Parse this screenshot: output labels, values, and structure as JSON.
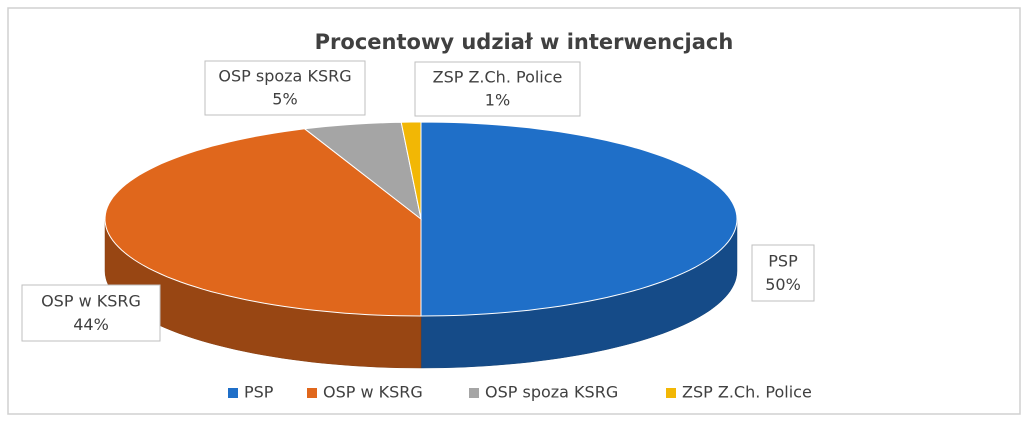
{
  "chart_data": {
    "type": "pie3d",
    "title": "Procentowy udział w interwencjach",
    "categories": [
      "PSP",
      "OSP w KSRG",
      "OSP spoza KSRG",
      "ZSP Z.Ch. Police"
    ],
    "values": [
      50,
      44,
      5,
      1
    ],
    "value_labels": [
      "50%",
      "44%",
      "5%",
      "1%"
    ],
    "colors": [
      "#1f6fc8",
      "#e0671c",
      "#a5a5a5",
      "#f2b705"
    ],
    "legend": "bottom"
  }
}
